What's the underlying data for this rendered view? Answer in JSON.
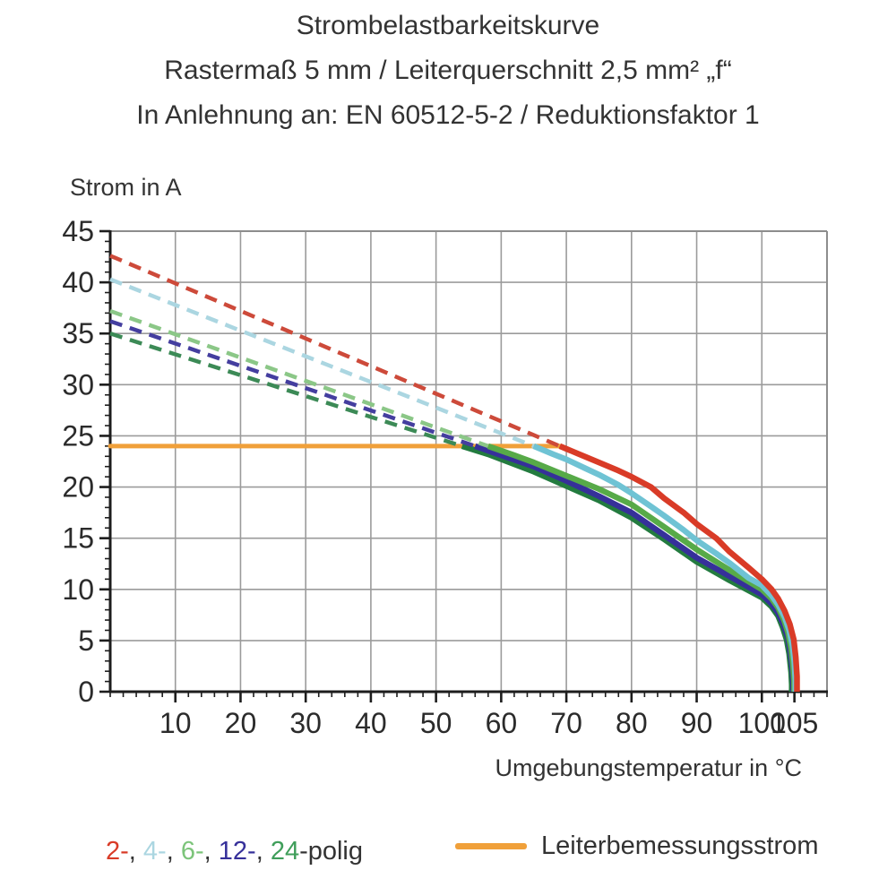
{
  "chart_data": {
    "type": "line",
    "title": [
      "Strombelastbarkeitskurve",
      "Rastermaß 5 mm / Leiterquerschnitt 2,5 mm² „f“",
      "In Anlehnung an: EN 60512-5-2 / Reduktionsfaktor 1"
    ],
    "xlabel": "Umgebungstemperatur in °C",
    "ylabel": "Strom in A",
    "x_unit": "°C",
    "y_unit": "A",
    "xlim": [
      0,
      110
    ],
    "ylim": [
      0,
      45
    ],
    "x_gridlines": [
      10,
      20,
      30,
      40,
      50,
      60,
      70,
      80,
      90,
      100
    ],
    "y_gridlines": [
      5,
      10,
      15,
      20,
      25,
      30,
      35,
      40
    ],
    "x_label_ticks": [
      10,
      20,
      30,
      40,
      50,
      60,
      70,
      80,
      90,
      100,
      105
    ],
    "y_label_ticks": [
      0,
      5,
      10,
      15,
      20,
      25,
      30,
      35,
      40,
      45
    ],
    "x_minor_step": 2,
    "y_minor_step": 1,
    "grid": "on",
    "rated_current": {
      "label": "Leiterbemessungsstrom",
      "value": 24,
      "t_start": 0,
      "t_end": 69,
      "color": "#f0a03a"
    },
    "series": [
      {
        "name": "2-polig",
        "poles": 2,
        "color": "#d93b27",
        "dash_color": "#cd4a3a",
        "start_current_at_0C": 42.6,
        "knee_temp": 69,
        "end_temp": 105.4,
        "dashed": [
          [
            0,
            42.6
          ],
          [
            69,
            24
          ]
        ],
        "solid": [
          [
            69,
            24
          ],
          [
            72,
            23.2
          ],
          [
            75,
            22.4
          ],
          [
            78,
            21.6
          ],
          [
            80,
            21
          ],
          [
            83,
            20
          ],
          [
            85,
            18.9
          ],
          [
            88,
            17.5
          ],
          [
            90,
            16.4
          ],
          [
            93,
            15
          ],
          [
            95,
            13.7
          ],
          [
            98,
            12.1
          ],
          [
            100,
            11
          ],
          [
            101.5,
            10
          ],
          [
            102.5,
            9.1
          ],
          [
            103.5,
            7.9
          ],
          [
            104.3,
            6.6
          ],
          [
            104.9,
            5.1
          ],
          [
            105.2,
            3.4
          ],
          [
            105.4,
            1.5
          ],
          [
            105.4,
            0
          ]
        ]
      },
      {
        "name": "4-polig",
        "poles": 4,
        "color": "#6fc3d4",
        "dash_color": "#abd6e1",
        "start_current_at_0C": 40.3,
        "knee_temp": 65,
        "end_temp": 105.15,
        "dashed": [
          [
            0,
            40.3
          ],
          [
            65,
            24
          ]
        ],
        "solid": [
          [
            65,
            24
          ],
          [
            68,
            23.2
          ],
          [
            70,
            22.7
          ],
          [
            73,
            21.8
          ],
          [
            75,
            21.2
          ],
          [
            78,
            20.2
          ],
          [
            80,
            19.4
          ],
          [
            83,
            18.1
          ],
          [
            85,
            17.2
          ],
          [
            88,
            15.8
          ],
          [
            90,
            14.8
          ],
          [
            93,
            13.5
          ],
          [
            95,
            12.6
          ],
          [
            98,
            11.1
          ],
          [
            100,
            10.4
          ],
          [
            101.5,
            9.4
          ],
          [
            102.5,
            8.5
          ],
          [
            103.5,
            7.3
          ],
          [
            104.2,
            6
          ],
          [
            104.7,
            4.5
          ],
          [
            105,
            2.9
          ],
          [
            105.15,
            1.2
          ],
          [
            105.15,
            0
          ]
        ]
      },
      {
        "name": "6-polig",
        "poles": 6,
        "color": "#57aa48",
        "dash_color": "#8bc787",
        "start_current_at_0C": 37.2,
        "knee_temp": 58,
        "end_temp": 104.95,
        "dashed": [
          [
            0,
            37.2
          ],
          [
            58,
            24
          ]
        ],
        "solid": [
          [
            58,
            24
          ],
          [
            62,
            23.1
          ],
          [
            65,
            22.4
          ],
          [
            70,
            21.1
          ],
          [
            75,
            19.8
          ],
          [
            80,
            18.3
          ],
          [
            85,
            16.1
          ],
          [
            90,
            13.9
          ],
          [
            95,
            11.9
          ],
          [
            100,
            10
          ],
          [
            101.5,
            9.1
          ],
          [
            102.5,
            8.2
          ],
          [
            103.4,
            7
          ],
          [
            104,
            5.8
          ],
          [
            104.5,
            4.2
          ],
          [
            104.8,
            2.5
          ],
          [
            104.95,
            1
          ],
          [
            104.95,
            0
          ]
        ]
      },
      {
        "name": "12-polig",
        "poles": 12,
        "color": "#36309a",
        "dash_color": "#443e9f",
        "start_current_at_0C": 36.2,
        "knee_temp": 56,
        "end_temp": 104.8,
        "dashed": [
          [
            0,
            36.2
          ],
          [
            56,
            24
          ]
        ],
        "solid": [
          [
            56,
            24
          ],
          [
            60,
            23.1
          ],
          [
            65,
            22
          ],
          [
            70,
            20.6
          ],
          [
            75,
            19.1
          ],
          [
            80,
            17.5
          ],
          [
            85,
            15.3
          ],
          [
            90,
            13.1
          ],
          [
            95,
            11.3
          ],
          [
            100,
            9.5
          ],
          [
            101.5,
            8.6
          ],
          [
            102.5,
            7.7
          ],
          [
            103.3,
            6.6
          ],
          [
            104,
            5.3
          ],
          [
            104.4,
            3.8
          ],
          [
            104.7,
            2.1
          ],
          [
            104.8,
            0.8
          ],
          [
            104.8,
            0
          ]
        ]
      },
      {
        "name": "24-polig",
        "poles": 24,
        "color": "#237b3f",
        "dash_color": "#3c8a56",
        "start_current_at_0C": 35.0,
        "knee_temp": 54,
        "end_temp": 104.6,
        "dashed": [
          [
            0,
            35
          ],
          [
            54,
            24
          ]
        ],
        "solid": [
          [
            54,
            24
          ],
          [
            58,
            23.2
          ],
          [
            65,
            21.5
          ],
          [
            70,
            20.1
          ],
          [
            75,
            18.7
          ],
          [
            80,
            17
          ],
          [
            85,
            14.9
          ],
          [
            90,
            12.7
          ],
          [
            95,
            10.9
          ],
          [
            100,
            9.2
          ],
          [
            101.5,
            8.3
          ],
          [
            102.5,
            7.4
          ],
          [
            103.2,
            6.3
          ],
          [
            103.8,
            5.1
          ],
          [
            104.2,
            3.7
          ],
          [
            104.5,
            1.9
          ],
          [
            104.6,
            0.7
          ],
          [
            104.6,
            0
          ]
        ]
      }
    ],
    "legend_position": "bottom"
  },
  "legend": {
    "series_items": [
      {
        "text": "2-",
        "color": "#d93b27"
      },
      {
        "text": "4-",
        "color": "#abd6e1"
      },
      {
        "text": "6-",
        "color": "#7cc47a"
      },
      {
        "text": "12-",
        "color": "#36309a"
      },
      {
        "text": "24",
        "color": "#3f9e5a"
      }
    ],
    "separator": ", ",
    "suffix": "-polig",
    "rated_label": "Leiterbemessungsstrom",
    "rated_color": "#f0a03a"
  },
  "colors": {
    "grid": "#9b9b9b",
    "frame": "#8d8d8d",
    "axis": "#1d1d1d",
    "text": "#2b2b2b"
  }
}
